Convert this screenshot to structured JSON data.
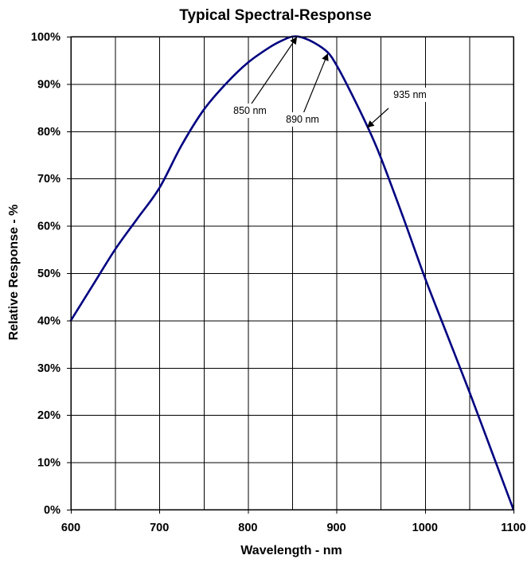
{
  "chart_data": {
    "type": "line",
    "title": "Typical Spectral-Response",
    "xlabel": "Wavelength - nm",
    "ylabel": "Relative Response - %",
    "xlim": [
      600,
      1100
    ],
    "ylim": [
      0,
      100
    ],
    "x_ticks": [
      600,
      700,
      800,
      900,
      1000,
      1100
    ],
    "x_tick_labels": [
      "600",
      "700",
      "800",
      "900",
      "1000",
      "1100"
    ],
    "x_gridlines": [
      600,
      650,
      700,
      750,
      800,
      850,
      900,
      950,
      1000,
      1050,
      1100
    ],
    "y_ticks": [
      0,
      10,
      20,
      30,
      40,
      50,
      60,
      70,
      80,
      90,
      100
    ],
    "y_tick_labels": [
      "0%",
      "10%",
      "20%",
      "30%",
      "40%",
      "50%",
      "60%",
      "70%",
      "80%",
      "90%",
      "100%"
    ],
    "grid": true,
    "series": [
      {
        "color": "#000080",
        "x": [
          600,
          625,
          650,
          675,
          700,
          725,
          750,
          775,
          800,
          825,
          840,
          850,
          860,
          875,
          890,
          900,
          915,
          935,
          950,
          975,
          1000,
          1025,
          1050,
          1075,
          1100
        ],
        "y": [
          40,
          47.5,
          55,
          61.5,
          68,
          77,
          84.5,
          90,
          94.5,
          97.8,
          99.3,
          100,
          99.9,
          98.7,
          96.7,
          94,
          88.7,
          81,
          74.5,
          62,
          49,
          37,
          25,
          12.5,
          0
        ]
      }
    ],
    "annotations": [
      {
        "text": "850 nm",
        "x": 855,
        "y": 100
      },
      {
        "text": "890 nm",
        "x": 890,
        "y": 96.5
      },
      {
        "text": "935 nm",
        "x": 935,
        "y": 81
      }
    ]
  }
}
